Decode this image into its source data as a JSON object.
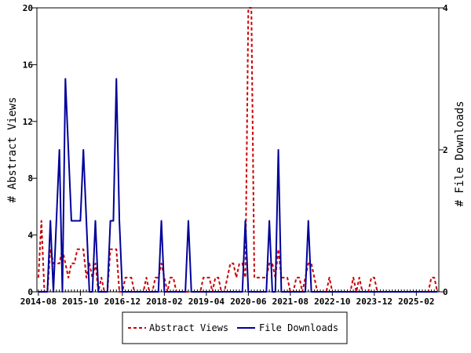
{
  "chart_data": {
    "type": "line",
    "x_tick_labels": [
      "2014-08",
      "2015-10",
      "2016-12",
      "2018-02",
      "2019-04",
      "2020-06",
      "2021-08",
      "2022-10",
      "2023-12",
      "2025-02"
    ],
    "y_left": {
      "label": "# Abstract Views",
      "ticks": [
        0,
        4,
        8,
        12,
        16,
        20
      ],
      "lim": [
        0,
        20
      ]
    },
    "y_right": {
      "label": "# File Downloads",
      "ticks": [
        0,
        2,
        4
      ],
      "lim": [
        0,
        4
      ]
    },
    "grid": false,
    "legend_position": "bottom",
    "month_count": 134,
    "series": [
      {
        "name": "Abstract Views",
        "axis": "left",
        "color": "#cc0000",
        "style": "dashed",
        "values": [
          1,
          5,
          0,
          0,
          3,
          2,
          2,
          2,
          3,
          2,
          1,
          2,
          2,
          3,
          3,
          3,
          1,
          2,
          1,
          2,
          0,
          1,
          0,
          0,
          3,
          3,
          3,
          0,
          0,
          1,
          1,
          1,
          0,
          0,
          0,
          0,
          1,
          0,
          0,
          1,
          1,
          2,
          1,
          0,
          1,
          1,
          0,
          0,
          0,
          0,
          0,
          0,
          0,
          0,
          0,
          1,
          1,
          1,
          0,
          1,
          1,
          0,
          0,
          1,
          2,
          2,
          1,
          2,
          2,
          1,
          20,
          20,
          1,
          1,
          1,
          1,
          1,
          2,
          2,
          1,
          3,
          1,
          1,
          1,
          0,
          0,
          1,
          1,
          0,
          1,
          2,
          2,
          1,
          0,
          0,
          0,
          0,
          1,
          0,
          0,
          0,
          0,
          0,
          0,
          0,
          1,
          0,
          1,
          0,
          0,
          0,
          1,
          1,
          0,
          0,
          0,
          0,
          0,
          0,
          0,
          0,
          0,
          0,
          0,
          0,
          0,
          0,
          0,
          0,
          0,
          0,
          1,
          1,
          0
        ]
      },
      {
        "name": "File Downloads",
        "axis": "right",
        "color": "#000099",
        "style": "solid",
        "values": [
          0,
          0,
          0,
          0,
          1,
          0,
          1,
          2,
          0,
          3,
          2,
          1,
          1,
          1,
          1,
          2,
          1,
          0,
          0,
          1,
          0,
          0,
          0,
          0,
          1,
          1,
          3,
          1,
          0,
          0,
          0,
          0,
          0,
          0,
          0,
          0,
          0,
          0,
          0,
          0,
          0,
          1,
          0,
          0,
          0,
          0,
          0,
          0,
          0,
          0,
          1,
          0,
          0,
          0,
          0,
          0,
          0,
          0,
          0,
          0,
          0,
          0,
          0,
          0,
          0,
          0,
          0,
          0,
          0,
          1,
          0,
          0,
          0,
          0,
          0,
          0,
          0,
          1,
          0,
          0,
          2,
          0,
          0,
          0,
          0,
          0,
          0,
          0,
          0,
          0,
          1,
          0,
          0,
          0,
          0,
          0,
          0,
          0,
          0,
          0,
          0,
          0,
          0,
          0,
          0,
          0,
          0,
          0,
          0,
          0,
          0,
          0,
          0,
          0,
          0,
          0,
          0,
          0,
          0,
          0,
          0,
          0,
          0,
          0,
          0,
          0,
          0,
          0,
          0,
          0,
          0,
          0,
          0,
          0
        ]
      }
    ]
  }
}
